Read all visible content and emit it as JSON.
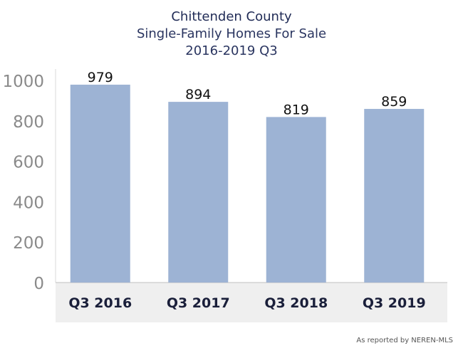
{
  "chart_data": {
    "type": "bar",
    "title": "Chittenden County",
    "subtitle": "Single-Family Homes For Sale",
    "subtitle2": "2016-2019 Q3",
    "categories": [
      "Q3 2016",
      "Q3 2017",
      "Q3 2018",
      "Q3 2019"
    ],
    "values": [
      979,
      894,
      819,
      859
    ],
    "data_labels": [
      "979",
      "894",
      "819",
      "859"
    ],
    "ylim": [
      0,
      1000
    ],
    "yticks": [
      0,
      200,
      400,
      600,
      800,
      1000
    ],
    "ytick_labels": [
      "0",
      "200",
      "400",
      "600",
      "800",
      "1000"
    ],
    "xlabel": "",
    "ylabel": "",
    "grid": false,
    "legend": "none",
    "bar_color": "#9db3d4",
    "category_band_color": "#efefef"
  },
  "footer": {
    "source": "As reported by NEREN-MLS"
  }
}
